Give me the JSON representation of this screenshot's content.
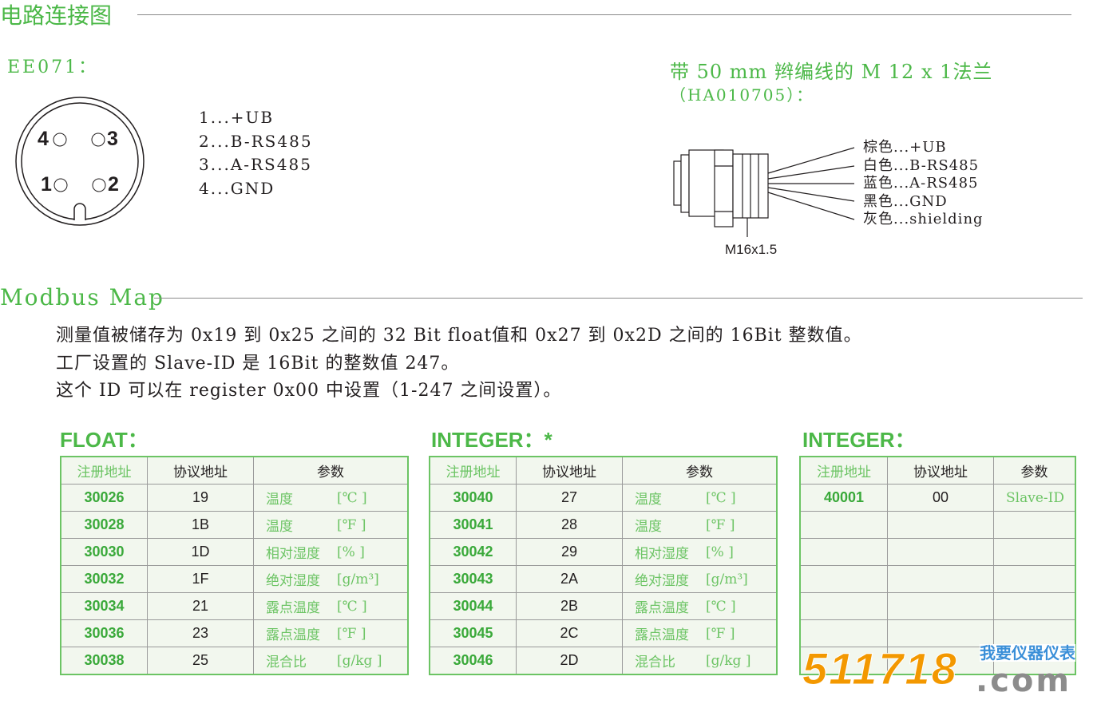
{
  "section1": {
    "title": "电路连接图"
  },
  "ee071": {
    "label": "EE071：",
    "pins": [
      "4",
      "3",
      "1",
      "2"
    ],
    "pinout": [
      "1...+UB",
      "2...B-RS485",
      "3...A-RS485",
      "4...GND"
    ]
  },
  "flange": {
    "title": "带 50 mm 辫编线的 M 12 x 1法兰",
    "subtitle": "（HA010705）：",
    "thread": "M16x1.5",
    "wires": [
      "棕色...+UB",
      "白色...B-RS485",
      "蓝色...A-RS485",
      "黑色...GND",
      "灰色...shielding"
    ]
  },
  "section2": {
    "title": "Modbus Map"
  },
  "description": [
    "测量值被储存为 0x19 到 0x25 之间的 32 Bit float值和 0x27 到 0x2D 之间的 16Bit 整数值。",
    "工厂设置的 Slave-ID 是 16Bit 的整数值 247。",
    "这个 ID 可以在 register 0x00 中设置（1-247 之间设置）。"
  ],
  "tables": [
    {
      "title": "FLOAT：",
      "headers": [
        "注册地址",
        "协议地址",
        "参数"
      ],
      "rows": [
        [
          "30026",
          "19",
          "温度",
          "[℃ ]"
        ],
        [
          "30028",
          "1B",
          "温度",
          "[℉ ]"
        ],
        [
          "30030",
          "1D",
          "相对湿度",
          "[% ]"
        ],
        [
          "30032",
          "1F",
          "绝对湿度",
          "[g/m³]"
        ],
        [
          "30034",
          "21",
          "露点温度",
          "[℃ ]"
        ],
        [
          "30036",
          "23",
          "露点温度",
          "[℉ ]"
        ],
        [
          "30038",
          "25",
          "混合比",
          "[g/kg ]"
        ]
      ]
    },
    {
      "title": "INTEGER：*",
      "headers": [
        "注册地址",
        "协议地址",
        "参数"
      ],
      "rows": [
        [
          "30040",
          "27",
          "温度",
          "[℃ ]"
        ],
        [
          "30041",
          "28",
          "温度",
          "[℉ ]"
        ],
        [
          "30042",
          "29",
          "相对湿度",
          "[% ]"
        ],
        [
          "30043",
          "2A",
          "绝对湿度",
          "[g/m³]"
        ],
        [
          "30044",
          "2B",
          "露点温度",
          "[℃ ]"
        ],
        [
          "30045",
          "2C",
          "露点温度",
          "[℉ ]"
        ],
        [
          "30046",
          "2D",
          "混合比",
          "[g/kg ]"
        ]
      ]
    },
    {
      "title": "INTEGER：",
      "headers": [
        "注册地址",
        "协议地址",
        "参数"
      ],
      "rows": [
        [
          "40001",
          "00",
          "Slave-ID",
          ""
        ],
        [
          "",
          "",
          "",
          ""
        ],
        [
          "",
          "",
          "",
          ""
        ],
        [
          "",
          "",
          "",
          ""
        ],
        [
          "",
          "",
          "",
          ""
        ],
        [
          "",
          "",
          "",
          ""
        ],
        [
          "",
          "",
          "",
          ""
        ]
      ]
    }
  ],
  "watermark": {
    "number": "511718",
    "site": "我要仪器仪表",
    "tld": ".com",
    "colors": {
      "number": "#f39800",
      "site": "#3a8fd8",
      "tld": "#8c8c8c"
    }
  },
  "colors": {
    "accent": "#4cb848"
  }
}
